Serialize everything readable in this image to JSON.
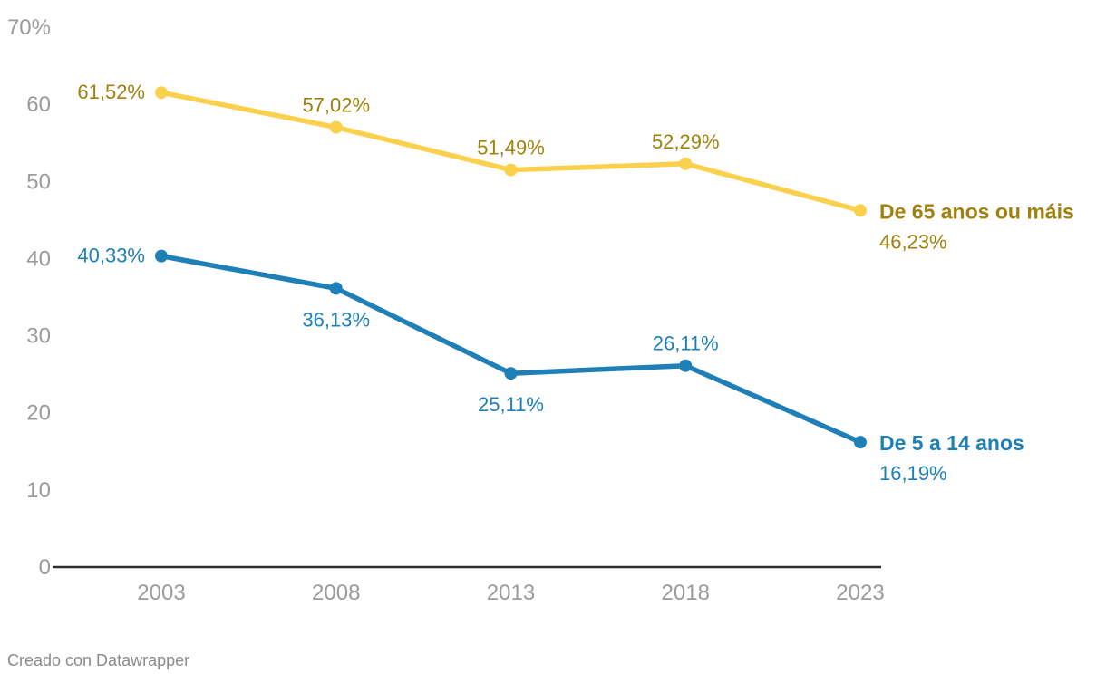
{
  "chart_data": {
    "type": "line",
    "title": "",
    "x_ticks": [
      "2003",
      "2008",
      "2013",
      "2018",
      "2023"
    ],
    "y_ticks": [
      {
        "value": 70,
        "label": "70%"
      },
      {
        "value": 60,
        "label": "60"
      },
      {
        "value": 50,
        "label": "50"
      },
      {
        "value": 40,
        "label": "40"
      },
      {
        "value": 30,
        "label": "30"
      },
      {
        "value": 20,
        "label": "20"
      },
      {
        "value": 10,
        "label": "10"
      },
      {
        "value": 0,
        "label": "0"
      }
    ],
    "ylim": [
      0,
      70
    ],
    "grid": false,
    "legend_position": "end-of-line",
    "series": [
      {
        "name": "De 65 anos ou máis",
        "values": [
          61.52,
          57.02,
          51.49,
          52.29,
          46.23
        ],
        "labels": [
          "61,52%",
          "57,02%",
          "51,49%",
          "52,29%",
          "46,23%"
        ],
        "label_placement": [
          "left",
          "above",
          "above",
          "above",
          "end"
        ],
        "line_color": "#fbd04c",
        "text_color": "#a0810e"
      },
      {
        "name": "De 5 a 14 anos",
        "values": [
          40.33,
          36.13,
          25.11,
          26.11,
          16.19
        ],
        "labels": [
          "40,33%",
          "36,13%",
          "25,11%",
          "26,11%",
          "16,19%"
        ],
        "label_placement": [
          "left",
          "below",
          "below",
          "above",
          "end"
        ],
        "line_color": "#1f80b8",
        "text_color": "#1f80b8"
      }
    ]
  },
  "footer": {
    "credit": "Creado con Datawrapper"
  },
  "colors": {
    "background": "#ffffff",
    "axis_line": "#2e2e2e",
    "tick_text": "#9b9b9b",
    "footer_text": "#8b8b8b"
  }
}
